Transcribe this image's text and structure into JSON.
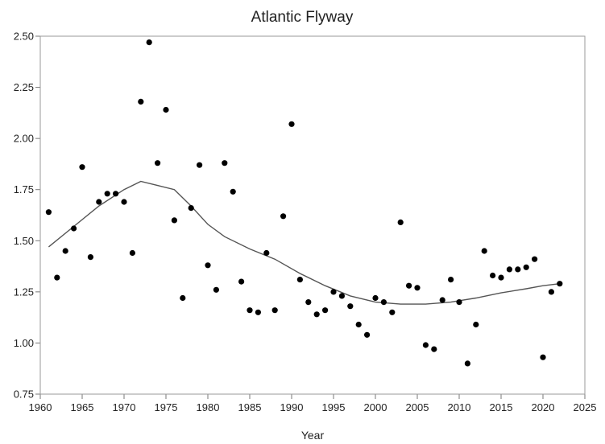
{
  "chart_data": {
    "type": "scatter",
    "title": "Atlantic Flyway",
    "xlabel": "Year",
    "ylabel": "",
    "xlim": [
      1960,
      2025
    ],
    "ylim": [
      0.75,
      2.5
    ],
    "x_ticks": [
      1960,
      1965,
      1970,
      1975,
      1980,
      1985,
      1990,
      1995,
      2000,
      2005,
      2010,
      2015,
      2020,
      2025
    ],
    "y_ticks": [
      "0.75",
      "1.00",
      "1.25",
      "1.50",
      "1.75",
      "2.00",
      "2.25",
      "2.50"
    ],
    "grid": false,
    "legend": "none",
    "series": [
      {
        "type": "scatter",
        "color": "#000000",
        "points": [
          [
            1961,
            1.64
          ],
          [
            1962,
            1.32
          ],
          [
            1963,
            1.45
          ],
          [
            1964,
            1.56
          ],
          [
            1965,
            1.86
          ],
          [
            1966,
            1.42
          ],
          [
            1967,
            1.69
          ],
          [
            1968,
            1.73
          ],
          [
            1969,
            1.73
          ],
          [
            1970,
            1.69
          ],
          [
            1971,
            1.44
          ],
          [
            1972,
            2.18
          ],
          [
            1973,
            2.47
          ],
          [
            1974,
            1.88
          ],
          [
            1975,
            2.14
          ],
          [
            1976,
            1.6
          ],
          [
            1977,
            1.22
          ],
          [
            1978,
            1.66
          ],
          [
            1979,
            1.87
          ],
          [
            1980,
            1.38
          ],
          [
            1981,
            1.26
          ],
          [
            1982,
            1.88
          ],
          [
            1983,
            1.74
          ],
          [
            1984,
            1.3
          ],
          [
            1985,
            1.16
          ],
          [
            1986,
            1.15
          ],
          [
            1987,
            1.44
          ],
          [
            1988,
            1.16
          ],
          [
            1989,
            1.62
          ],
          [
            1990,
            2.07
          ],
          [
            1991,
            1.31
          ],
          [
            1992,
            1.2
          ],
          [
            1993,
            1.14
          ],
          [
            1994,
            1.16
          ],
          [
            1995,
            1.25
          ],
          [
            1996,
            1.23
          ],
          [
            1997,
            1.18
          ],
          [
            1998,
            1.09
          ],
          [
            1999,
            1.04
          ],
          [
            2000,
            1.22
          ],
          [
            2001,
            1.2
          ],
          [
            2002,
            1.15
          ],
          [
            2003,
            1.59
          ],
          [
            2004,
            1.28
          ],
          [
            2005,
            1.27
          ],
          [
            2006,
            0.99
          ],
          [
            2007,
            0.97
          ],
          [
            2008,
            1.21
          ],
          [
            2009,
            1.31
          ],
          [
            2010,
            1.2
          ],
          [
            2011,
            0.9
          ],
          [
            2012,
            1.09
          ],
          [
            2013,
            1.45
          ],
          [
            2014,
            1.33
          ],
          [
            2015,
            1.32
          ],
          [
            2016,
            1.36
          ],
          [
            2017,
            1.36
          ],
          [
            2018,
            1.37
          ],
          [
            2019,
            1.41
          ],
          [
            2020,
            0.93
          ],
          [
            2021,
            1.25
          ],
          [
            2022,
            1.29
          ]
        ]
      },
      {
        "type": "line",
        "color": "#555555",
        "points": [
          [
            1961,
            1.47
          ],
          [
            1964,
            1.57
          ],
          [
            1967,
            1.67
          ],
          [
            1970,
            1.75
          ],
          [
            1972,
            1.79
          ],
          [
            1974,
            1.77
          ],
          [
            1976,
            1.75
          ],
          [
            1978,
            1.67
          ],
          [
            1980,
            1.58
          ],
          [
            1982,
            1.52
          ],
          [
            1985,
            1.46
          ],
          [
            1988,
            1.41
          ],
          [
            1991,
            1.34
          ],
          [
            1994,
            1.28
          ],
          [
            1997,
            1.23
          ],
          [
            2000,
            1.2
          ],
          [
            2003,
            1.19
          ],
          [
            2006,
            1.19
          ],
          [
            2009,
            1.2
          ],
          [
            2012,
            1.22
          ],
          [
            2015,
            1.245
          ],
          [
            2018,
            1.265
          ],
          [
            2020,
            1.28
          ],
          [
            2022,
            1.29
          ]
        ]
      }
    ]
  }
}
